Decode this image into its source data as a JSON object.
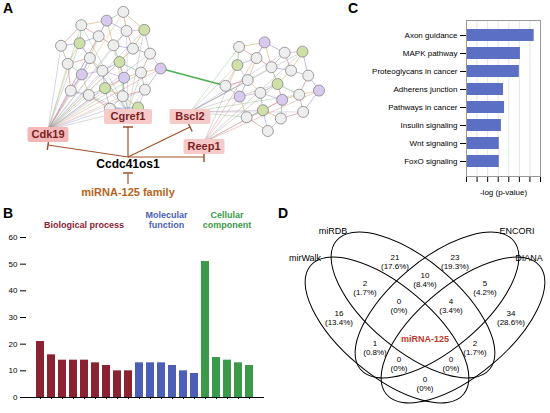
{
  "network": {
    "panel": "A",
    "clusters": [
      {
        "nodes": 26
      },
      {
        "nodes": 22
      }
    ],
    "targets": [
      {
        "label": "Cdk19",
        "color": "#f4b8b8"
      },
      {
        "label": "Cgref1",
        "color": "#f7caca"
      },
      {
        "label": "Bscl2",
        "color": "#f7caca"
      },
      {
        "label": "Reep1",
        "color": "#f7caca"
      }
    ],
    "center": "Ccdc41os1",
    "regulator": "miRNA-125 family"
  },
  "chart_data": [
    {
      "panel": "B",
      "type": "bar",
      "categories": [
        null,
        null,
        null,
        null,
        null,
        null,
        null,
        null,
        null,
        null,
        null,
        null,
        null,
        null,
        null,
        null,
        null,
        null,
        null,
        null
      ],
      "series": [
        {
          "name": "Biological process",
          "color": "#8b2232",
          "values": [
            21,
            16,
            14,
            14,
            14,
            13,
            12,
            10,
            10,
            null,
            null,
            null,
            null,
            null,
            null,
            null,
            null,
            null,
            null,
            null
          ]
        },
        {
          "name": "Molecular function",
          "color": "#4a5fb5",
          "values": [
            null,
            null,
            null,
            null,
            null,
            null,
            null,
            null,
            null,
            13,
            13,
            13,
            12,
            10,
            9,
            null,
            null,
            null,
            null,
            null
          ]
        },
        {
          "name": "Cellular component",
          "color": "#3a9a4a",
          "values": [
            null,
            null,
            null,
            null,
            null,
            null,
            null,
            null,
            null,
            null,
            null,
            null,
            null,
            null,
            null,
            51,
            15,
            14,
            13,
            12
          ]
        }
      ],
      "ylim": [
        0,
        60
      ],
      "yticks": [
        0,
        10,
        20,
        30,
        40,
        50,
        60
      ],
      "tick_labels": "y",
      "grid": false
    },
    {
      "panel": "C",
      "type": "bar",
      "orientation": "horizontal",
      "categories": [
        "Axon guidance",
        "MAPK pathway",
        "Proteoglycans in cancer",
        "Adherens junction",
        "Pathways in cancer",
        "Insulin signaling",
        "Wnt signaling",
        "FoxO signaling"
      ],
      "values": [
        6.4,
        5.1,
        5.0,
        3.5,
        3.6,
        3.3,
        3.1,
        3.1
      ],
      "color": "#5b6fc4",
      "xlim": [
        0,
        7
      ],
      "xticks": [
        0,
        1,
        2,
        3,
        4,
        5,
        6,
        7
      ],
      "x_label": "-log (p-value)",
      "tick_labels": "y",
      "grid": true
    }
  ],
  "venn": {
    "panel": "D",
    "sets": [
      "mirWalk",
      "miRDB",
      "ENCORI",
      "DIANA"
    ],
    "regions": [
      {
        "sets": [
          1
        ],
        "value": 21,
        "label": "(17.6%)"
      },
      {
        "sets": [
          2
        ],
        "value": 23,
        "label": "(19.3%)"
      },
      {
        "sets": [
          0
        ],
        "value": 16,
        "label": "(13.4%)"
      },
      {
        "sets": [
          3
        ],
        "value": 34,
        "label": "(28.6%)"
      },
      {
        "sets": [
          0,
          1
        ],
        "value": 2,
        "label": "(1.7%)"
      },
      {
        "sets": [
          1,
          2
        ],
        "value": 10,
        "label": "(8.4%)"
      },
      {
        "sets": [
          2,
          3
        ],
        "value": 5,
        "label": "(4.2%)"
      },
      {
        "sets": [
          0,
          1,
          2
        ],
        "value": 0,
        "label": "(0%)"
      },
      {
        "sets": [
          1,
          2,
          3
        ],
        "value": 4,
        "label": "(3.4%)"
      },
      {
        "sets": [
          0,
          2
        ],
        "value": 1,
        "label": "(0.8%)"
      },
      {
        "sets": [
          1,
          3
        ],
        "value": 2,
        "label": "(1.7%)"
      },
      {
        "sets": [
          0,
          2,
          3
        ],
        "value": 0,
        "label": "(0%)"
      },
      {
        "sets": [
          0,
          1,
          3
        ],
        "value": 0,
        "label": "(0%)"
      },
      {
        "sets": [
          0,
          3
        ],
        "value": 0,
        "label": "(0%)"
      },
      {
        "sets": [
          0,
          1,
          2,
          3
        ],
        "text": "miRNA-125",
        "color": "#c0392b"
      }
    ]
  }
}
